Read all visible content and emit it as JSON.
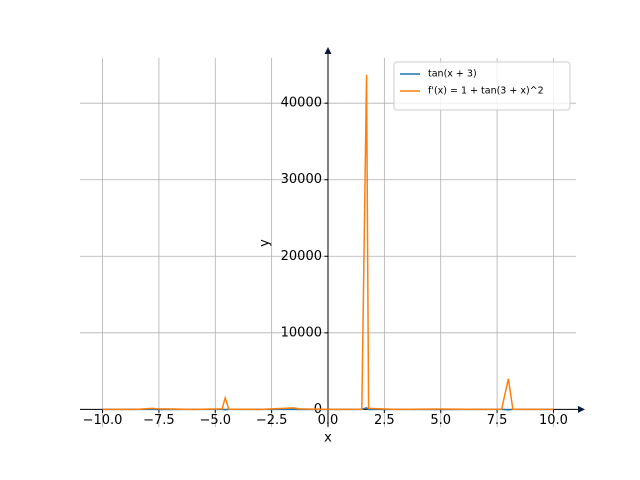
{
  "chart_data": {
    "type": "line",
    "x": [
      -10,
      -8.5,
      -7.8,
      -7.6,
      -6,
      -4.7,
      -4.56,
      -4.4,
      -3,
      -1.5,
      -1.3,
      0,
      1.5,
      1.71,
      1.8,
      3,
      5,
      6.5,
      7.7,
      8.0,
      8.2,
      10
    ],
    "series": [
      {
        "name": "tan(x + 3)",
        "color": "#1f77b4",
        "values": [
          -0.87,
          0.99,
          11.4,
          -8.9,
          0.14,
          7.7,
          -38.7,
          -5.8,
          0,
          14.1,
          -7.7,
          -0.14,
          4.64,
          209,
          -11.4,
          -0.29,
          -6.8,
          0.075,
          3.3,
          -63,
          -4.8,
          0.46
        ]
      },
      {
        "name": "f'(x) = 1 + tan(3 + x)^2",
        "color": "#ff7f0e",
        "values": [
          1.76,
          1.99,
          131,
          80,
          1.02,
          60,
          1500,
          35,
          1,
          200,
          60,
          1.02,
          22.5,
          43700,
          131,
          1.08,
          47,
          1.01,
          12,
          4000,
          24,
          1.2
        ]
      }
    ],
    "x_label": "x",
    "y_label": "y",
    "xlim": [
      -11,
      11
    ],
    "ylim": [
      -2300,
      45900
    ],
    "xticks": [
      {
        "value": -10,
        "label": "−10.0"
      },
      {
        "value": -7.5,
        "label": "−7.5"
      },
      {
        "value": -5,
        "label": "−5.0"
      },
      {
        "value": -2.5,
        "label": "−2.5"
      },
      {
        "value": 0,
        "label": "0.0"
      },
      2.5,
      {
        "value": 5,
        "label": "5.0"
      },
      7.5,
      {
        "value": 10,
        "label": "10.0"
      }
    ],
    "yticks": [
      0,
      10000,
      20000,
      30000,
      40000
    ],
    "grid": true,
    "legend": "upper right"
  }
}
